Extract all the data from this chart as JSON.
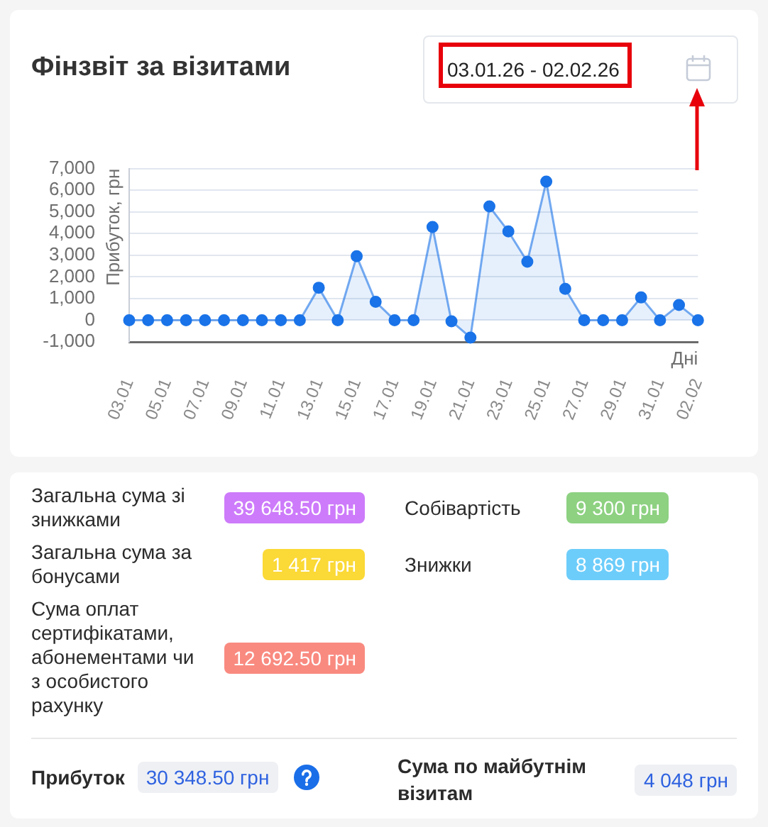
{
  "chart_data": [
    {
      "type": "area",
      "title": "Фінзвіт за візитами",
      "subtitle": "03.01.26 - 02.02.26",
      "ylabel": "Прибуток, грн",
      "xlabel": "Дні",
      "categories": [
        "03.01",
        null,
        "05.01",
        null,
        "07.01",
        null,
        "09.01",
        null,
        "11.01",
        null,
        "13.01",
        null,
        "15.01",
        null,
        "17.01",
        null,
        "19.01",
        null,
        "21.01",
        null,
        "23.01",
        null,
        "25.01",
        null,
        "27.01",
        null,
        "29.01",
        null,
        "31.01",
        null,
        "02.02"
      ],
      "values": [
        0,
        0,
        0,
        0,
        0,
        0,
        0,
        0,
        0,
        0,
        1500,
        0,
        2950,
        850,
        0,
        0,
        4300,
        -50,
        -800,
        5250,
        4100,
        2700,
        6400,
        1450,
        0,
        0,
        0,
        1050,
        0,
        700,
        0
      ],
      "color": "#1a73e8",
      "ylim": [
        -1000,
        7000
      ],
      "yticks": [
        {
          "value": -1000,
          "label": "-1,000"
        },
        0,
        {
          "value": 1000,
          "label": "1,000"
        },
        {
          "value": 2000,
          "label": "2,000"
        },
        {
          "value": 3000,
          "label": "3,000"
        },
        {
          "value": 4000,
          "label": "4,000"
        },
        {
          "value": 5000,
          "label": "5,000"
        },
        {
          "value": 6000,
          "label": "6,000"
        },
        {
          "value": 7000,
          "label": "7,000"
        }
      ],
      "grid": "y",
      "marker": "circle"
    },
    {
      "type": "other",
      "annotations": [
        "Загальна сума зі знижками",
        "39 648.50 грн",
        "Загальна сума за бонусами",
        "1 417 грн",
        "Сума оплат сертифікатами, абонементами чи з особистого рахунку",
        "12 692.50 грн",
        "Собівартість",
        "9 300 грн",
        "Знижки",
        "8 869 грн",
        "Прибуток",
        "30 348.50 грн",
        "Сума по майбутнім візитам",
        "4 048 грн"
      ],
      "colors": [
        "#cd7bfa",
        "#fbd936",
        "#f98a80",
        "#8dd181",
        "#6dcdfa",
        "#eef0f4",
        "#eef0f4"
      ]
    }
  ]
}
